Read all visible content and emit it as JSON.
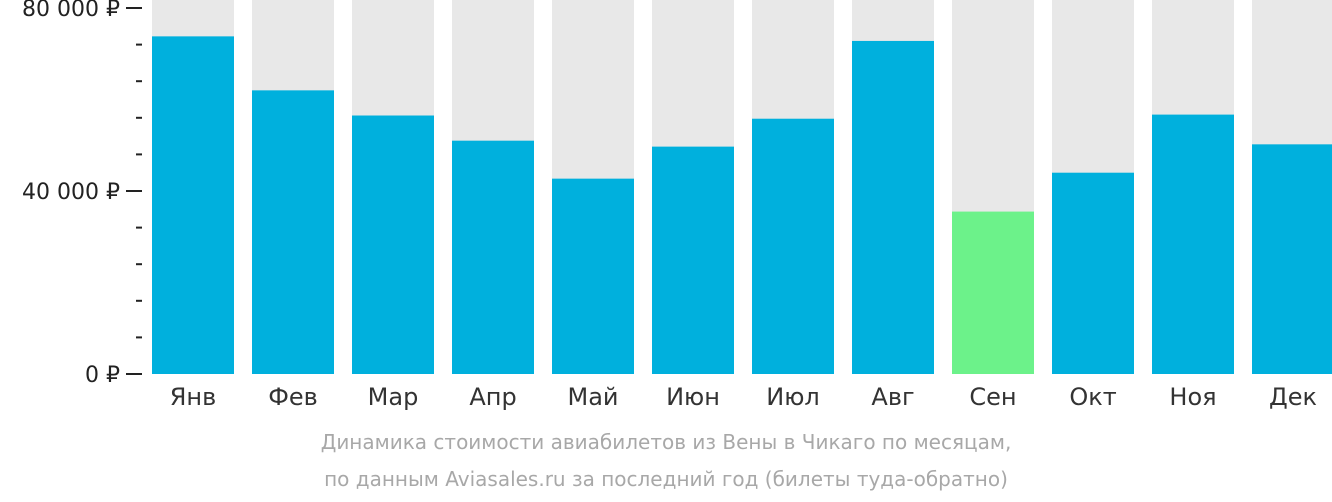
{
  "chart_data": {
    "type": "bar",
    "categories": [
      "Янв",
      "Фев",
      "Мар",
      "Апр",
      "Май",
      "Июн",
      "Июл",
      "Авг",
      "Сен",
      "Окт",
      "Ноя",
      "Дек"
    ],
    "values": [
      73800,
      62000,
      56500,
      51000,
      42700,
      49700,
      55800,
      72800,
      35500,
      44000,
      56700,
      50200
    ],
    "ylim": [
      0,
      80000
    ],
    "y_ticks": [
      {
        "value": 0,
        "label": "0 ₽"
      },
      {
        "value": 40000,
        "label": "40 000 ₽"
      },
      {
        "value": 80000,
        "label": "80 000 ₽"
      }
    ],
    "y_minor_step": 8000,
    "highlight_index": 8,
    "grid": false,
    "colors": {
      "bar": "#00b0dd",
      "highlight": "#6cf28a",
      "background_bar": "#e8e8e8",
      "axis": "#222222"
    },
    "caption_line1": "Динамика стоимости авиабилетов из Вены в Чикаго по месяцам,",
    "caption_line2": "по данным Aviasales.ru за последний год (билеты туда-обратно)"
  }
}
